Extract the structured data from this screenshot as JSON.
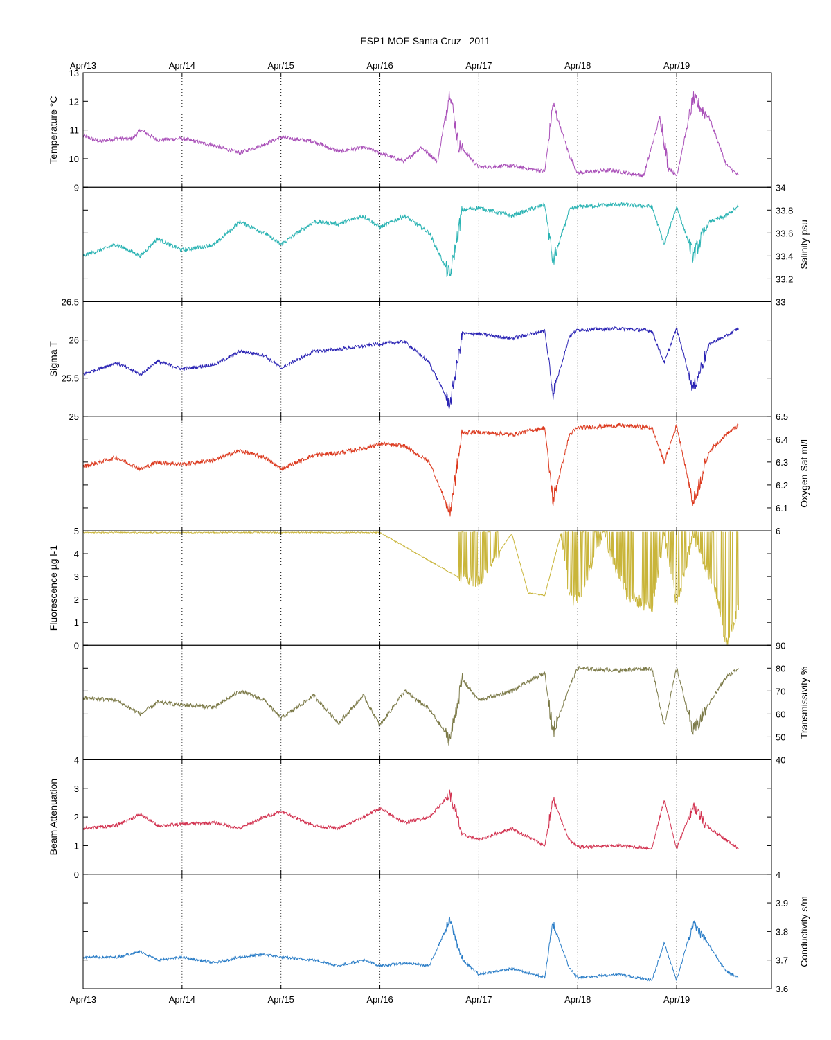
{
  "chart_data": {
    "type": "line",
    "title": "ESP1 MOE Santa Cruz   2011",
    "x_axis": {
      "type": "date",
      "range": [
        "2011-04-13 00:00",
        "2011-04-19 23:00"
      ],
      "tick_values": [
        "2011-04-13",
        "2011-04-14",
        "2011-04-15",
        "2011-04-16",
        "2011-04-17",
        "2011-04-18",
        "2011-04-19"
      ],
      "tick_labels": [
        "Apr/13",
        "Apr/14",
        "Apr/15",
        "Apr/16",
        "Apr/17",
        "Apr/18",
        "Apr/19"
      ],
      "grid": "dotted vertical lines at each day"
    },
    "panels": [
      {
        "key": "temperature",
        "ylabel": "Temperature °C",
        "axis_side": "left",
        "ylim": [
          9,
          13
        ],
        "yticks": [
          9,
          10,
          11,
          12,
          13
        ],
        "color": "#a94fb8",
        "fill_down": false,
        "x": [
          "2011-04-13 00:00",
          "2011-04-13 04:00",
          "2011-04-13 08:00",
          "2011-04-13 12:00",
          "2011-04-13 14:00",
          "2011-04-13 18:00",
          "2011-04-14 00:00",
          "2011-04-14 08:00",
          "2011-04-14 14:00",
          "2011-04-14 20:00",
          "2011-04-15 00:00",
          "2011-04-15 08:00",
          "2011-04-15 14:00",
          "2011-04-15 20:00",
          "2011-04-16 00:00",
          "2011-04-16 06:00",
          "2011-04-16 10:00",
          "2011-04-16 14:00",
          "2011-04-16 17:00",
          "2011-04-16 19:00",
          "2011-04-17 00:00",
          "2011-04-17 08:00",
          "2011-04-17 16:00",
          "2011-04-17 18:00",
          "2011-04-17 22:00",
          "2011-04-18 00:00",
          "2011-04-18 08:00",
          "2011-04-18 16:00",
          "2011-04-18 20:00",
          "2011-04-18 22:00",
          "2011-04-19 00:00",
          "2011-04-19 04:00",
          "2011-04-19 08:00",
          "2011-04-19 12:00",
          "2011-04-19 15:00"
        ],
        "values": [
          10.8,
          10.6,
          10.7,
          10.7,
          11.0,
          10.65,
          10.7,
          10.45,
          10.2,
          10.5,
          10.75,
          10.6,
          10.25,
          10.4,
          10.2,
          9.9,
          10.4,
          9.9,
          12.4,
          10.5,
          9.7,
          9.75,
          9.55,
          11.9,
          10.1,
          9.5,
          9.6,
          9.4,
          11.5,
          9.7,
          9.4,
          12.1,
          11.4,
          9.8,
          9.4
        ],
        "noise": 0.3,
        "burst_ranges": [
          [
            "2011-04-16 16:00",
            "2011-04-16 20:00"
          ],
          [
            "2011-04-17 17:00",
            "2011-04-17 19:00"
          ],
          [
            "2011-04-18 20:00",
            "2011-04-18 22:00"
          ],
          [
            "2011-04-19 03:00",
            "2011-04-19 07:00"
          ]
        ]
      },
      {
        "key": "salinity",
        "ylabel": "Salinity psu",
        "axis_side": "right",
        "ylim": [
          33,
          34
        ],
        "yticks": [
          33,
          33.2,
          33.4,
          33.6,
          33.8,
          34
        ],
        "color": "#2ab3b3",
        "fill_down": false,
        "x": [
          "2011-04-13 00:00",
          "2011-04-13 08:00",
          "2011-04-13 14:00",
          "2011-04-13 18:00",
          "2011-04-14 00:00",
          "2011-04-14 08:00",
          "2011-04-14 14:00",
          "2011-04-14 20:00",
          "2011-04-15 00:00",
          "2011-04-15 08:00",
          "2011-04-15 14:00",
          "2011-04-15 20:00",
          "2011-04-16 00:00",
          "2011-04-16 06:00",
          "2011-04-16 12:00",
          "2011-04-16 17:00",
          "2011-04-16 20:00",
          "2011-04-17 00:00",
          "2011-04-17 08:00",
          "2011-04-17 16:00",
          "2011-04-17 18:00",
          "2011-04-17 22:00",
          "2011-04-18 00:00",
          "2011-04-18 10:00",
          "2011-04-18 18:00",
          "2011-04-18 21:00",
          "2011-04-19 00:00",
          "2011-04-19 04:00",
          "2011-04-19 08:00",
          "2011-04-19 12:00",
          "2011-04-19 15:00"
        ],
        "values": [
          33.4,
          33.5,
          33.4,
          33.55,
          33.45,
          33.5,
          33.7,
          33.6,
          33.5,
          33.7,
          33.68,
          33.75,
          33.65,
          33.75,
          33.6,
          33.22,
          33.8,
          33.82,
          33.75,
          33.85,
          33.35,
          33.8,
          33.83,
          33.85,
          33.83,
          33.5,
          33.83,
          33.4,
          33.7,
          33.75,
          33.83
        ],
        "noise": 0.08,
        "burst_ranges": [
          [
            "2011-04-16 16:00",
            "2011-04-16 20:00"
          ],
          [
            "2011-04-17 17:00",
            "2011-04-17 19:00"
          ],
          [
            "2011-04-19 03:00",
            "2011-04-19 07:00"
          ]
        ]
      },
      {
        "key": "sigma_t",
        "ylabel": "Sigma T",
        "axis_side": "left",
        "ylim": [
          25,
          26.5
        ],
        "yticks": [
          25,
          25.5,
          26,
          26.5
        ],
        "color": "#2b24b4",
        "fill_down": false,
        "x": [
          "2011-04-13 00:00",
          "2011-04-13 08:00",
          "2011-04-13 14:00",
          "2011-04-13 18:00",
          "2011-04-14 00:00",
          "2011-04-14 08:00",
          "2011-04-14 14:00",
          "2011-04-14 20:00",
          "2011-04-15 00:00",
          "2011-04-15 08:00",
          "2011-04-15 14:00",
          "2011-04-15 20:00",
          "2011-04-16 00:00",
          "2011-04-16 06:00",
          "2011-04-16 12:00",
          "2011-04-16 17:00",
          "2011-04-16 20:00",
          "2011-04-17 00:00",
          "2011-04-17 08:00",
          "2011-04-17 16:00",
          "2011-04-17 18:00",
          "2011-04-17 22:00",
          "2011-04-18 00:00",
          "2011-04-18 10:00",
          "2011-04-18 18:00",
          "2011-04-18 21:00",
          "2011-04-19 00:00",
          "2011-04-19 04:00",
          "2011-04-19 08:00",
          "2011-04-19 12:00",
          "2011-04-19 15:00"
        ],
        "values": [
          25.55,
          25.7,
          25.55,
          25.72,
          25.62,
          25.68,
          25.85,
          25.8,
          25.63,
          25.85,
          25.88,
          25.92,
          25.95,
          25.98,
          25.7,
          25.15,
          26.08,
          26.08,
          26.02,
          26.12,
          25.3,
          26.05,
          26.13,
          26.15,
          26.12,
          25.7,
          26.15,
          25.35,
          25.95,
          26.05,
          26.15
        ],
        "noise": 0.1,
        "burst_ranges": [
          [
            "2011-04-16 16:00",
            "2011-04-16 20:00"
          ],
          [
            "2011-04-17 17:00",
            "2011-04-17 19:00"
          ],
          [
            "2011-04-19 03:00",
            "2011-04-19 07:00"
          ]
        ]
      },
      {
        "key": "oxygen_sat",
        "ylabel": "Oxygen Sat ml/l",
        "axis_side": "right",
        "ylim": [
          6,
          6.5
        ],
        "yticks": [
          6,
          6.1,
          6.2,
          6.3,
          6.4,
          6.5
        ],
        "color": "#dc3a1f",
        "fill_down": false,
        "x": [
          "2011-04-13 00:00",
          "2011-04-13 08:00",
          "2011-04-13 14:00",
          "2011-04-13 18:00",
          "2011-04-14 00:00",
          "2011-04-14 08:00",
          "2011-04-14 14:00",
          "2011-04-14 20:00",
          "2011-04-15 00:00",
          "2011-04-15 08:00",
          "2011-04-15 14:00",
          "2011-04-15 20:00",
          "2011-04-16 00:00",
          "2011-04-16 06:00",
          "2011-04-16 12:00",
          "2011-04-16 17:00",
          "2011-04-16 20:00",
          "2011-04-17 00:00",
          "2011-04-17 08:00",
          "2011-04-17 16:00",
          "2011-04-17 18:00",
          "2011-04-17 22:00",
          "2011-04-18 00:00",
          "2011-04-18 10:00",
          "2011-04-18 18:00",
          "2011-04-18 21:00",
          "2011-04-19 00:00",
          "2011-04-19 04:00",
          "2011-04-19 08:00",
          "2011-04-19 12:00",
          "2011-04-19 15:00"
        ],
        "values": [
          6.28,
          6.32,
          6.27,
          6.3,
          6.29,
          6.31,
          6.35,
          6.32,
          6.27,
          6.33,
          6.34,
          6.36,
          6.38,
          6.37,
          6.3,
          6.08,
          6.43,
          6.43,
          6.42,
          6.45,
          6.13,
          6.42,
          6.45,
          6.46,
          6.45,
          6.3,
          6.46,
          6.12,
          6.35,
          6.42,
          6.46
        ],
        "noise": 0.04,
        "burst_ranges": [
          [
            "2011-04-16 16:00",
            "2011-04-16 20:00"
          ],
          [
            "2011-04-17 17:00",
            "2011-04-17 19:00"
          ],
          [
            "2011-04-19 03:00",
            "2011-04-19 07:00"
          ]
        ]
      },
      {
        "key": "fluorescence",
        "ylabel": "Fluorescence µg l-1",
        "axis_side": "left",
        "ylim": [
          0,
          5
        ],
        "yticks": [
          0,
          1,
          2,
          3,
          4,
          5
        ],
        "color": "#c9b53a",
        "fill_down": true,
        "x": [
          "2011-04-13 00:00",
          "2011-04-16 00:00",
          "2011-04-16 19:00",
          "2011-04-17 00:00",
          "2011-04-17 08:00",
          "2011-04-17 12:00",
          "2011-04-17 16:00",
          "2011-04-17 20:00",
          "2011-04-17 22:00",
          "2011-04-18 00:00",
          "2011-04-18 06:00",
          "2011-04-18 12:00",
          "2011-04-18 18:00",
          "2011-04-18 21:00",
          "2011-04-19 00:00",
          "2011-04-19 04:00",
          "2011-04-19 10:00",
          "2011-04-19 12:00",
          "2011-04-19 15:00"
        ],
        "values": [
          4.95,
          4.95,
          3.0,
          2.8,
          4.9,
          2.3,
          2.2,
          4.95,
          2.1,
          1.9,
          4.9,
          2.2,
          1.6,
          4.9,
          1.7,
          4.9,
          2.0,
          0.0,
          1.6
        ],
        "noise": 0.6,
        "burst_ranges": [
          [
            "2011-04-16 19:00",
            "2011-04-17 05:00"
          ],
          [
            "2011-04-17 20:00",
            "2011-04-19 15:00"
          ]
        ]
      },
      {
        "key": "transmissivity",
        "ylabel": "Transmissivity %",
        "axis_side": "right",
        "ylim": [
          40,
          90
        ],
        "yticks": [
          40,
          50,
          60,
          70,
          80,
          90
        ],
        "color": "#7c7a48",
        "fill_down": false,
        "x": [
          "2011-04-13 00:00",
          "2011-04-13 08:00",
          "2011-04-13 14:00",
          "2011-04-13 18:00",
          "2011-04-14 00:00",
          "2011-04-14 08:00",
          "2011-04-14 14:00",
          "2011-04-14 20:00",
          "2011-04-15 00:00",
          "2011-04-15 08:00",
          "2011-04-15 14:00",
          "2011-04-15 20:00",
          "2011-04-16 00:00",
          "2011-04-16 06:00",
          "2011-04-16 12:00",
          "2011-04-16 17:00",
          "2011-04-16 20:00",
          "2011-04-17 00:00",
          "2011-04-17 08:00",
          "2011-04-17 16:00",
          "2011-04-17 18:00",
          "2011-04-17 22:00",
          "2011-04-18 00:00",
          "2011-04-18 10:00",
          "2011-04-18 18:00",
          "2011-04-18 21:00",
          "2011-04-19 00:00",
          "2011-04-19 04:00",
          "2011-04-19 08:00",
          "2011-04-19 12:00",
          "2011-04-19 15:00"
        ],
        "values": [
          67,
          66,
          60,
          65,
          64,
          63,
          70,
          66,
          58,
          68,
          56,
          68,
          55,
          70,
          62,
          49,
          75,
          66,
          70,
          78,
          52,
          72,
          80,
          79,
          80,
          55,
          80,
          52,
          65,
          76,
          80
        ],
        "noise": 4,
        "burst_ranges": [
          [
            "2011-04-16 16:00",
            "2011-04-16 20:00"
          ],
          [
            "2011-04-17 17:00",
            "2011-04-17 19:00"
          ],
          [
            "2011-04-19 03:00",
            "2011-04-19 07:00"
          ]
        ]
      },
      {
        "key": "beam_attenuation",
        "ylabel": "Beam Attenuation",
        "axis_side": "left",
        "ylim": [
          0,
          4
        ],
        "yticks": [
          0,
          1,
          2,
          3,
          4
        ],
        "color": "#d2314f",
        "fill_down": false,
        "x": [
          "2011-04-13 00:00",
          "2011-04-13 08:00",
          "2011-04-13 14:00",
          "2011-04-13 18:00",
          "2011-04-14 00:00",
          "2011-04-14 08:00",
          "2011-04-14 14:00",
          "2011-04-14 20:00",
          "2011-04-15 00:00",
          "2011-04-15 08:00",
          "2011-04-15 14:00",
          "2011-04-15 20:00",
          "2011-04-16 00:00",
          "2011-04-16 06:00",
          "2011-04-16 12:00",
          "2011-04-16 17:00",
          "2011-04-16 20:00",
          "2011-04-17 00:00",
          "2011-04-17 08:00",
          "2011-04-17 16:00",
          "2011-04-17 18:00",
          "2011-04-17 22:00",
          "2011-04-18 00:00",
          "2011-04-18 10:00",
          "2011-04-18 18:00",
          "2011-04-18 21:00",
          "2011-04-19 00:00",
          "2011-04-19 04:00",
          "2011-04-19 08:00",
          "2011-04-19 12:00",
          "2011-04-19 15:00"
        ],
        "values": [
          1.6,
          1.7,
          2.1,
          1.7,
          1.75,
          1.8,
          1.6,
          2.0,
          2.2,
          1.7,
          1.6,
          2.0,
          2.3,
          1.8,
          2.0,
          2.8,
          1.4,
          1.2,
          1.6,
          1.0,
          2.6,
          1.2,
          0.95,
          1.0,
          0.9,
          2.6,
          0.9,
          2.4,
          1.6,
          1.2,
          0.9
        ],
        "noise": 0.25,
        "burst_ranges": [
          [
            "2011-04-16 16:00",
            "2011-04-16 20:00"
          ],
          [
            "2011-04-17 17:00",
            "2011-04-17 19:00"
          ],
          [
            "2011-04-19 03:00",
            "2011-04-19 07:00"
          ]
        ]
      },
      {
        "key": "conductivity",
        "ylabel": "Conductivity s/m",
        "axis_side": "right",
        "ylim": [
          3.6,
          4
        ],
        "yticks": [
          3.6,
          3.7,
          3.8,
          3.9,
          4
        ],
        "color": "#2a7dc7",
        "fill_down": false,
        "x": [
          "2011-04-13 00:00",
          "2011-04-13 08:00",
          "2011-04-13 14:00",
          "2011-04-13 18:00",
          "2011-04-14 00:00",
          "2011-04-14 08:00",
          "2011-04-14 14:00",
          "2011-04-14 20:00",
          "2011-04-15 00:00",
          "2011-04-15 08:00",
          "2011-04-15 14:00",
          "2011-04-15 20:00",
          "2011-04-16 00:00",
          "2011-04-16 06:00",
          "2011-04-16 12:00",
          "2011-04-16 17:00",
          "2011-04-16 20:00",
          "2011-04-17 00:00",
          "2011-04-17 08:00",
          "2011-04-17 16:00",
          "2011-04-17 18:00",
          "2011-04-17 22:00",
          "2011-04-18 00:00",
          "2011-04-18 10:00",
          "2011-04-18 18:00",
          "2011-04-18 21:00",
          "2011-04-19 00:00",
          "2011-04-19 04:00",
          "2011-04-19 08:00",
          "2011-04-19 12:00",
          "2011-04-19 15:00"
        ],
        "values": [
          3.71,
          3.71,
          3.73,
          3.7,
          3.71,
          3.69,
          3.71,
          3.72,
          3.71,
          3.7,
          3.68,
          3.7,
          3.68,
          3.69,
          3.68,
          3.84,
          3.7,
          3.65,
          3.67,
          3.64,
          3.83,
          3.67,
          3.64,
          3.65,
          3.63,
          3.76,
          3.63,
          3.83,
          3.75,
          3.66,
          3.64
        ],
        "noise": 0.02,
        "burst_ranges": [
          [
            "2011-04-16 16:00",
            "2011-04-16 20:00"
          ],
          [
            "2011-04-17 17:00",
            "2011-04-17 19:00"
          ],
          [
            "2011-04-19 03:00",
            "2011-04-19 07:00"
          ]
        ]
      }
    ]
  }
}
